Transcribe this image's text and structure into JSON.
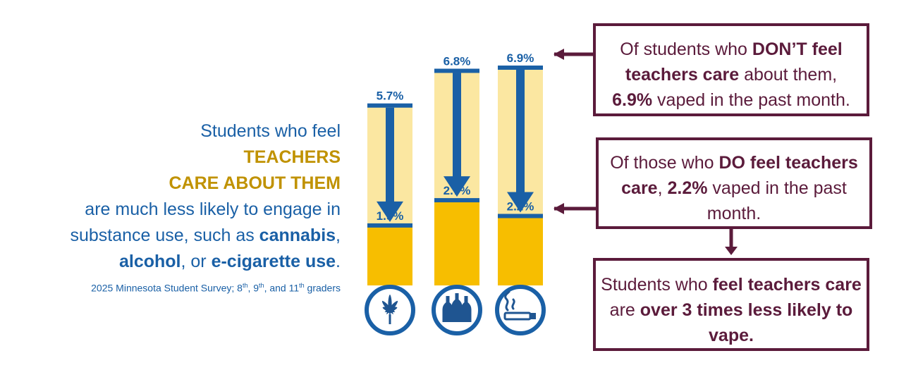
{
  "headline": {
    "line1": "Students who feel",
    "emph1": "TEACHERS",
    "emph2": "CARE ABOUT THEM",
    "line2": "are much less likely to engage in substance use, such as ",
    "cannabis": "cannabis",
    "comma": ",",
    "alcohol": "alcohol",
    "or": ", or ",
    "ecig": "e-cigarette use",
    "period": "."
  },
  "source": {
    "prefix": "2025 Minnesota Student Survey; 8",
    "sup1": "th",
    "sep1": ", 9",
    "sup2": "th",
    "sep2": ", and 11",
    "sup3": "th",
    "suffix": " graders"
  },
  "callouts": {
    "top": {
      "t1": "Of students who ",
      "b1": "DON’T feel teachers care",
      "t2": " about them, ",
      "b2": "6.9%",
      "t3": " vaped in the past month."
    },
    "mid": {
      "t1": "Of those who ",
      "b1": "DO feel teachers care",
      "t2": ", ",
      "b2": "2.2%",
      "t3": " vaped in the past month."
    },
    "bottom": {
      "t1": "Students who ",
      "b1": "feel teachers care",
      "t2": " are ",
      "b2": "over 3 times less likely to vape."
    }
  },
  "colors": {
    "blue": "#1a60a6",
    "gold": "#f7be00",
    "pale_gold": "#fbe7a1",
    "maroon": "#5b1b3b",
    "icon_blue": "#1f5591"
  },
  "chart_data": {
    "type": "bar",
    "categories": [
      "cannabis",
      "alcohol",
      "e-cigarette"
    ],
    "icons": [
      "cannabis-leaf-icon",
      "bottles-icon",
      "e-cigarette-icon"
    ],
    "series": [
      {
        "values": [
          5.7,
          6.8,
          6.9
        ]
      },
      {
        "values": [
          1.9,
          2.7,
          2.2
        ]
      }
    ],
    "labels_high": [
      "5.7%",
      "6.8%",
      "6.9%"
    ],
    "labels_low": [
      "1.9%",
      "2.7%",
      "2.2%"
    ],
    "ylim": [
      0,
      8
    ]
  }
}
